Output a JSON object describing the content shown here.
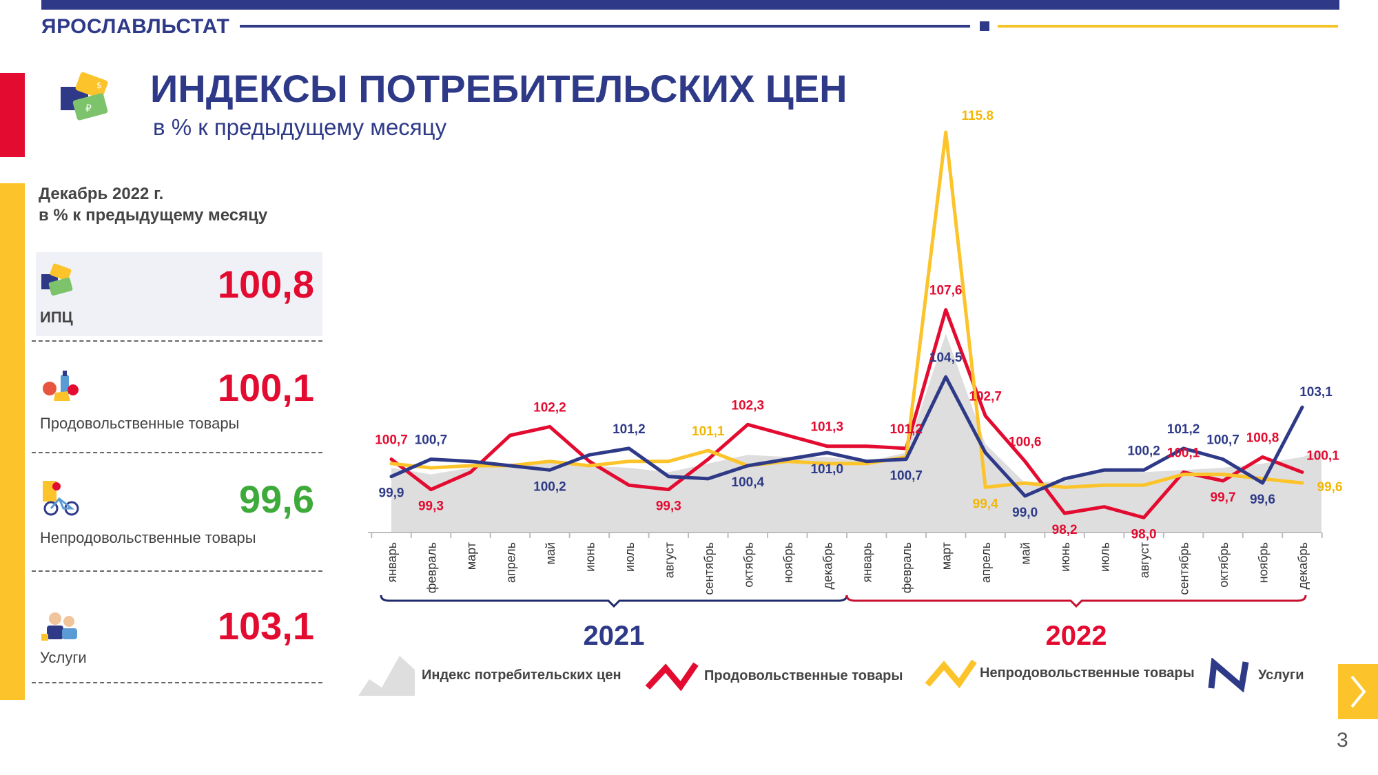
{
  "header": {
    "org": "ЯРОСЛАВЛЬСТАТ",
    "title": "ИНДЕКСЫ ПОТРЕБИТЕЛЬСКИХ ЦЕН",
    "subtitle": "в % к предыдущему месяцу"
  },
  "panel": {
    "heading_line1": "Декабрь 2022 г.",
    "heading_line2": "в % к предыдущему месяцу",
    "cards": [
      {
        "label": "ИПЦ",
        "value": "100,8",
        "color": "#e30b30",
        "icon": "price-tags-icon"
      },
      {
        "label": "Продовольственные товары",
        "value": "100,1",
        "color": "#e30b30",
        "icon": "food-icon"
      },
      {
        "label": "Непродовольственные товары",
        "value": "99,6",
        "color": "#3daa3a",
        "icon": "bicycle-icon"
      },
      {
        "label": "Услуги",
        "value": "103,1",
        "color": "#e30b30",
        "icon": "services-icon"
      }
    ]
  },
  "page_number": "3",
  "colors": {
    "cpi": "#dedede",
    "food": "#e30b30",
    "nonfood": "#fcc42a",
    "services": "#2e3a87"
  },
  "chart_data": {
    "type": "line",
    "categories": [
      "январь",
      "февраль",
      "март",
      "апрель",
      "май",
      "июнь",
      "июль",
      "август",
      "сентябрь",
      "октябрь",
      "ноябрь",
      "декабрь",
      "январь",
      "февраль",
      "март",
      "апрель",
      "май",
      "июнь",
      "июль",
      "август",
      "сентябрь",
      "октябрь",
      "ноябрь",
      "декабрь"
    ],
    "years": [
      "2021",
      "2022"
    ],
    "ylim": [
      95.5,
      116.5
    ],
    "grid": false,
    "legend_position": "bottom",
    "series": [
      {
        "name": "Индекс потребительских цен",
        "kind": "area",
        "values": [
          100.3,
          100.0,
          100.3,
          100.5,
          100.6,
          100.4,
          100.3,
          100.1,
          100.5,
          100.9,
          100.8,
          100.8,
          100.6,
          101.0,
          106.5,
          101.4,
          99.6,
          99.7,
          100.2,
          100.1,
          100.2,
          100.3,
          100.5,
          100.8
        ]
      },
      {
        "name": "Продовольственные товары",
        "kind": "line",
        "values": [
          100.7,
          99.3,
          100.1,
          101.8,
          102.2,
          100.6,
          99.5,
          99.3,
          100.7,
          102.3,
          101.8,
          101.3,
          101.3,
          101.2,
          107.6,
          102.7,
          100.6,
          98.2,
          98.5,
          98.0,
          100.1,
          99.7,
          100.8,
          100.1
        ],
        "labels": [
          "100,7",
          "99,3",
          "",
          "",
          "102,2",
          "",
          "",
          "99,3",
          "",
          "102,3",
          "",
          "101,3",
          "",
          "101,2",
          "107,6",
          "102,7",
          "100,6",
          "98,2",
          "",
          "98,0",
          "100,1",
          "99,7",
          "100,8",
          "100,1"
        ]
      },
      {
        "name": "Непродовольственные товары",
        "kind": "line",
        "values": [
          100.5,
          100.3,
          100.4,
          100.4,
          100.6,
          100.4,
          100.6,
          100.6,
          101.1,
          100.4,
          100.6,
          100.5,
          100.5,
          100.8,
          115.8,
          99.4,
          99.6,
          99.4,
          99.5,
          99.5,
          100.0,
          100.0,
          99.8,
          99.6
        ],
        "labels": [
          "",
          "",
          "",
          "",
          "",
          "",
          "",
          "",
          "101,1",
          "",
          "",
          "",
          "",
          "",
          "115.8",
          "99,4",
          "",
          "",
          "",
          "",
          "",
          "",
          "",
          "99,6"
        ]
      },
      {
        "name": "Услуги",
        "kind": "line",
        "values": [
          99.9,
          100.7,
          100.6,
          100.4,
          100.2,
          100.9,
          101.2,
          99.9,
          99.8,
          100.4,
          100.7,
          101.0,
          100.6,
          100.7,
          104.5,
          101.0,
          99.0,
          99.8,
          100.2,
          100.2,
          101.2,
          100.7,
          99.6,
          103.1
        ],
        "labels": [
          "99,9",
          "100,7",
          "",
          "",
          "100,2",
          "",
          "101,2",
          "",
          "",
          "100,4",
          "",
          "101,0",
          "",
          "100,7",
          "104,5",
          "",
          "99,0",
          "",
          "",
          "100,2",
          "101,2",
          "100,7",
          "99,6",
          "103,1"
        ]
      }
    ]
  }
}
